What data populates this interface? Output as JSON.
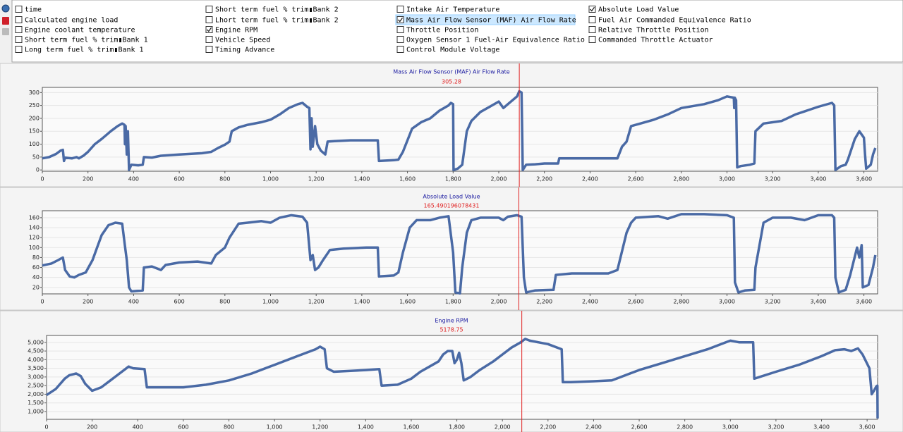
{
  "checkboxes": [
    [
      {
        "label": "time",
        "checked": false
      },
      {
        "label": "Calculated engine load",
        "checked": false
      },
      {
        "label": "Engine coolant temperature",
        "checked": false
      },
      {
        "label": "Short term fuel % trim▮Bank 1",
        "checked": false
      },
      {
        "label": "Long term fuel % trim▮Bank 1",
        "checked": false
      }
    ],
    [
      {
        "label": "Short term fuel % trim▮Bank 2",
        "checked": false
      },
      {
        "label": "Lhort term fuel % trim▮Bank 2",
        "checked": false
      },
      {
        "label": "Engine RPM",
        "checked": true
      },
      {
        "label": "Vehicle Speed",
        "checked": false
      },
      {
        "label": "Timing Advance",
        "checked": false
      }
    ],
    [
      {
        "label": "Intake Air Temperature",
        "checked": false
      },
      {
        "label": "Mass Air Flow Sensor (MAF) Air Flow Rate",
        "checked": true,
        "selected": true
      },
      {
        "label": "Throttle Position",
        "checked": false
      },
      {
        "label": "Oxygen Sensor 1 Fuel-Air Equivalence Ratio",
        "checked": false
      },
      {
        "label": "Control Module Voltage",
        "checked": false
      }
    ],
    [
      {
        "label": "Absolute Load Value",
        "checked": true
      },
      {
        "label": "Fuel Air Commanded Equivalence Ratio",
        "checked": false
      },
      {
        "label": "Relative Throttle Position",
        "checked": false
      },
      {
        "label": "Commanded Throttle Actuator",
        "checked": false
      }
    ]
  ],
  "chart_data": [
    {
      "type": "line",
      "title": "Mass Air Flow Sensor (MAF) Air Flow Rate",
      "cursor_x": 2090,
      "cursor_value": 305.28,
      "color": "#4a6aa5",
      "xlim": [
        0,
        3660
      ],
      "ylim": [
        -5,
        320
      ],
      "xticks": [
        0,
        200,
        400,
        600,
        800,
        {
          "value": 1000,
          "label": "1,000"
        },
        {
          "value": 1200,
          "label": "1,200"
        },
        {
          "value": 1400,
          "label": "1,400"
        },
        {
          "value": 1600,
          "label": "1,600"
        },
        {
          "value": 1800,
          "label": "1,800"
        },
        {
          "value": 2000,
          "label": "2,000"
        },
        {
          "value": 2200,
          "label": "2,200"
        },
        {
          "value": 2400,
          "label": "2,400"
        },
        {
          "value": 2600,
          "label": "2,600"
        },
        {
          "value": 2800,
          "label": "2,800"
        },
        {
          "value": 3000,
          "label": "3,000"
        },
        {
          "value": 3200,
          "label": "3,200"
        },
        {
          "value": 3400,
          "label": "3,400"
        },
        {
          "value": 3600,
          "label": "3,600"
        }
      ],
      "yticks": [
        0,
        50,
        100,
        150,
        200,
        250,
        300
      ],
      "x": [
        0,
        30,
        60,
        80,
        90,
        95,
        100,
        130,
        150,
        160,
        180,
        200,
        230,
        260,
        280,
        300,
        330,
        350,
        360,
        362,
        365,
        370,
        375,
        380,
        390,
        420,
        440,
        445,
        480,
        520,
        600,
        700,
        740,
        770,
        800,
        820,
        830,
        860,
        900,
        960,
        1000,
        1040,
        1080,
        1120,
        1140,
        1160,
        1170,
        1175,
        1180,
        1185,
        1195,
        1205,
        1220,
        1240,
        1250,
        1280,
        1350,
        1470,
        1475,
        1540,
        1560,
        1580,
        1620,
        1660,
        1700,
        1740,
        1780,
        1790,
        1800,
        1802,
        1820,
        1840,
        1860,
        1880,
        1920,
        1960,
        2000,
        2020,
        2040,
        2060,
        2080,
        2090,
        2100,
        2105,
        2120,
        2160,
        2200,
        2260,
        2265,
        2340,
        2520,
        2540,
        2560,
        2580,
        2620,
        2680,
        2740,
        2800,
        2900,
        2960,
        3000,
        3030,
        3032,
        3034,
        3040,
        3045,
        3060,
        3100,
        3120,
        3125,
        3160,
        3240,
        3300,
        3400,
        3460,
        3470,
        3475,
        3500,
        3520,
        3530,
        3560,
        3580,
        3600,
        3605,
        3610,
        3630,
        3640,
        3650
      ],
      "values": [
        45,
        50,
        62,
        75,
        78,
        35,
        48,
        45,
        50,
        45,
        55,
        70,
        100,
        120,
        135,
        150,
        170,
        180,
        175,
        100,
        170,
        60,
        150,
        0,
        20,
        18,
        20,
        50,
        48,
        55,
        60,
        65,
        70,
        85,
        98,
        110,
        150,
        165,
        175,
        185,
        195,
        215,
        240,
        255,
        260,
        245,
        240,
        80,
        200,
        90,
        170,
        100,
        75,
        60,
        110,
        112,
        115,
        115,
        35,
        38,
        40,
        70,
        160,
        185,
        200,
        230,
        250,
        260,
        255,
        0,
        5,
        20,
        150,
        190,
        225,
        245,
        265,
        240,
        255,
        270,
        285,
        305,
        300,
        0,
        20,
        22,
        25,
        25,
        45,
        45,
        45,
        90,
        110,
        170,
        180,
        195,
        215,
        240,
        255,
        270,
        285,
        280,
        240,
        280,
        270,
        10,
        15,
        20,
        25,
        150,
        180,
        190,
        215,
        245,
        260,
        250,
        0,
        15,
        20,
        40,
        120,
        150,
        125,
        60,
        5,
        20,
        60,
        85
      ]
    },
    {
      "type": "line",
      "title": "Absolute Load Value",
      "cursor_x": 2088,
      "cursor_value": 165.490196078431,
      "color": "#4a6aa5",
      "xlim": [
        0,
        3660
      ],
      "ylim": [
        7,
        174
      ],
      "xticks": [
        0,
        200,
        400,
        600,
        800,
        {
          "value": 1000,
          "label": "1,000"
        },
        {
          "value": 1200,
          "label": "1,200"
        },
        {
          "value": 1400,
          "label": "1,400"
        },
        {
          "value": 1600,
          "label": "1,600"
        },
        {
          "value": 1800,
          "label": "1,800"
        },
        {
          "value": 2000,
          "label": "2,000"
        },
        {
          "value": 2200,
          "label": "2,200"
        },
        {
          "value": 2400,
          "label": "2,400"
        },
        {
          "value": 2600,
          "label": "2,600"
        },
        {
          "value": 2800,
          "label": "2,800"
        },
        {
          "value": 3000,
          "label": "3,000"
        },
        {
          "value": 3200,
          "label": "3,200"
        },
        {
          "value": 3400,
          "label": "3,400"
        },
        {
          "value": 3600,
          "label": "3,600"
        }
      ],
      "yticks": [
        20,
        40,
        60,
        80,
        100,
        120,
        140,
        160
      ],
      "x": [
        0,
        40,
        70,
        90,
        100,
        120,
        140,
        160,
        190,
        220,
        240,
        260,
        290,
        320,
        350,
        360,
        370,
        380,
        390,
        440,
        445,
        480,
        520,
        540,
        600,
        680,
        740,
        760,
        800,
        820,
        860,
        900,
        960,
        1000,
        1040,
        1090,
        1140,
        1160,
        1170,
        1175,
        1185,
        1195,
        1210,
        1230,
        1260,
        1320,
        1420,
        1470,
        1475,
        1540,
        1560,
        1580,
        1610,
        1640,
        1700,
        1740,
        1780,
        1800,
        1810,
        1830,
        1840,
        1860,
        1880,
        1920,
        1960,
        2000,
        2020,
        2040,
        2080,
        2100,
        2110,
        2120,
        2160,
        2240,
        2250,
        2320,
        2480,
        2520,
        2560,
        2580,
        2600,
        2700,
        2740,
        2800,
        2900,
        3000,
        3030,
        3035,
        3050,
        3080,
        3120,
        3125,
        3160,
        3200,
        3280,
        3340,
        3400,
        3460,
        3470,
        3475,
        3490,
        3520,
        3540,
        3570,
        3580,
        3590,
        3595,
        3620,
        3640,
        3650
      ],
      "values": [
        64,
        68,
        75,
        80,
        55,
        42,
        40,
        45,
        50,
        75,
        100,
        125,
        145,
        150,
        148,
        110,
        75,
        20,
        12,
        14,
        60,
        62,
        55,
        65,
        70,
        72,
        68,
        85,
        100,
        120,
        148,
        150,
        153,
        150,
        160,
        165,
        162,
        150,
        100,
        75,
        85,
        55,
        60,
        75,
        95,
        98,
        100,
        100,
        42,
        44,
        50,
        90,
        140,
        155,
        155,
        160,
        163,
        90,
        10,
        8,
        60,
        130,
        155,
        160,
        160,
        160,
        155,
        162,
        165,
        162,
        40,
        10,
        14,
        15,
        45,
        48,
        48,
        55,
        130,
        150,
        160,
        163,
        158,
        167,
        167,
        165,
        160,
        30,
        10,
        14,
        15,
        60,
        150,
        160,
        160,
        155,
        165,
        165,
        160,
        40,
        10,
        15,
        45,
        100,
        80,
        105,
        20,
        25,
        60,
        85
      ]
    },
    {
      "type": "line",
      "title": "Engine RPM",
      "cursor_x": 2085,
      "cursor_value": 5178.75,
      "color": "#4a6aa5",
      "xlim": [
        0,
        3646
      ],
      "ylim": [
        550,
        5400
      ],
      "xticks": [
        0,
        200,
        400,
        600,
        800,
        {
          "value": 1000,
          "label": "1,000"
        },
        {
          "value": 1200,
          "label": "1,200"
        },
        {
          "value": 1400,
          "label": "1,400"
        },
        {
          "value": 1600,
          "label": "1,600"
        },
        {
          "value": 1800,
          "label": "1,800"
        },
        {
          "value": 2000,
          "label": "2,000"
        },
        {
          "value": 2200,
          "label": "2,200"
        },
        {
          "value": 2400,
          "label": "2,400"
        },
        {
          "value": 2600,
          "label": "2,600"
        },
        {
          "value": 2800,
          "label": "2,800"
        },
        {
          "value": 3000,
          "label": "3,000"
        },
        {
          "value": 3200,
          "label": "3,200"
        },
        {
          "value": 3400,
          "label": "3,400"
        },
        {
          "value": 3600,
          "label": "3,600"
        }
      ],
      "yticks": [
        {
          "value": 1000,
          "label": "1,000"
        },
        {
          "value": 1500,
          "label": "1,500"
        },
        {
          "value": 2000,
          "label": "2,000"
        },
        {
          "value": 2500,
          "label": "2,500"
        },
        {
          "value": 3000,
          "label": "3,000"
        },
        {
          "value": 3500,
          "label": "3,500"
        },
        {
          "value": 4000,
          "label": "4,000"
        },
        {
          "value": 4500,
          "label": "4,500"
        },
        {
          "value": 5000,
          "label": "5,000"
        }
      ],
      "x": [
        0,
        40,
        80,
        100,
        130,
        150,
        170,
        200,
        240,
        280,
        320,
        360,
        380,
        430,
        440,
        500,
        600,
        700,
        800,
        900,
        1000,
        1100,
        1180,
        1200,
        1220,
        1230,
        1260,
        1400,
        1460,
        1470,
        1540,
        1600,
        1640,
        1680,
        1720,
        1740,
        1760,
        1780,
        1790,
        1800,
        1810,
        1820,
        1830,
        1860,
        1900,
        1960,
        2000,
        2040,
        2080,
        2100,
        2120,
        2200,
        2260,
        2265,
        2300,
        2400,
        2480,
        2520,
        2600,
        2700,
        2800,
        2900,
        2980,
        3000,
        3040,
        3100,
        3105,
        3200,
        3300,
        3400,
        3460,
        3500,
        3530,
        3560,
        3580,
        3610,
        3620,
        3630,
        3640,
        3645,
        3646
      ],
      "values": [
        1950,
        2300,
        2900,
        3100,
        3200,
        3050,
        2600,
        2200,
        2400,
        2800,
        3200,
        3600,
        3500,
        3450,
        2400,
        2400,
        2400,
        2550,
        2800,
        3200,
        3700,
        4200,
        4600,
        4750,
        4600,
        3500,
        3300,
        3400,
        3450,
        2500,
        2550,
        2900,
        3300,
        3600,
        3900,
        4300,
        4500,
        4500,
        3800,
        4000,
        4400,
        3800,
        2800,
        3000,
        3400,
        3900,
        4300,
        4700,
        5000,
        5200,
        5100,
        4900,
        4600,
        2700,
        2700,
        2750,
        2800,
        3000,
        3400,
        3800,
        4200,
        4600,
        5000,
        5100,
        5000,
        5000,
        2900,
        3300,
        3700,
        4200,
        4550,
        4600,
        4500,
        4650,
        4300,
        3500,
        2000,
        2200,
        2450,
        2500,
        600
      ]
    }
  ]
}
